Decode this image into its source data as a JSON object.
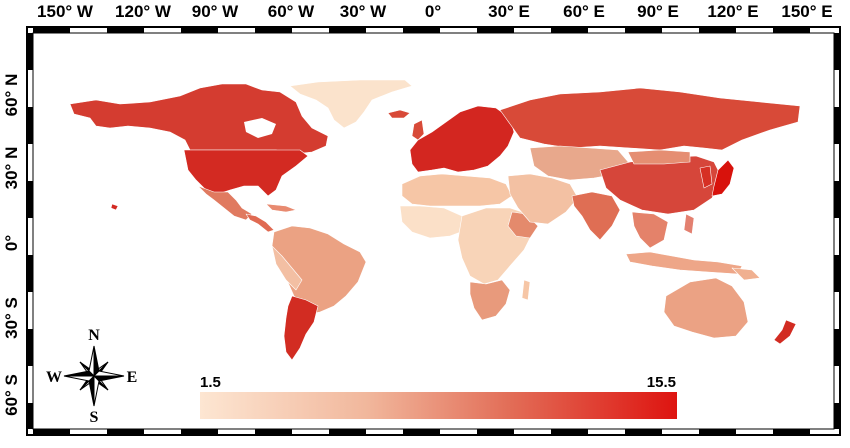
{
  "map": {
    "x_ticks": [
      "150° W",
      "120° W",
      "90° W",
      "60° W",
      "30° W",
      "0°",
      "30° E",
      "60° E",
      "90° E",
      "120° E",
      "150° E"
    ],
    "y_ticks": [
      "60° N",
      "30° N",
      "0°",
      "30° S",
      "60° S"
    ],
    "colors": {
      "low": "#fbe3cc",
      "mid_low": "#eeaa8c",
      "mid": "#e07258",
      "high": "#d84a38",
      "max": "#d8120c",
      "ocean": "#ffffff",
      "frame": "#000000"
    },
    "regions": [
      {
        "name": "north-america",
        "level": 0.75
      },
      {
        "name": "united-states",
        "level": 0.8
      },
      {
        "name": "greenland",
        "level": 0.1
      },
      {
        "name": "mexico-central-america",
        "level": 0.45
      },
      {
        "name": "south-america",
        "level": 0.35
      },
      {
        "name": "chile-argentina",
        "level": 0.85
      },
      {
        "name": "europe",
        "level": 0.85
      },
      {
        "name": "north-africa",
        "level": 0.25
      },
      {
        "name": "sub-saharan-africa",
        "level": 0.2
      },
      {
        "name": "southern-africa",
        "level": 0.4
      },
      {
        "name": "russia",
        "level": 0.7
      },
      {
        "name": "central-asia",
        "level": 0.45
      },
      {
        "name": "middle-east",
        "level": 0.35
      },
      {
        "name": "china-east-asia",
        "level": 0.72
      },
      {
        "name": "india-south-asia",
        "level": 0.65
      },
      {
        "name": "southeast-asia",
        "level": 0.5
      },
      {
        "name": "japan",
        "level": 0.95
      },
      {
        "name": "australia",
        "level": 0.45
      },
      {
        "name": "new-zealand",
        "level": 0.85
      }
    ]
  },
  "compass": {
    "north": "N",
    "south": "S",
    "east": "E",
    "west": "W"
  },
  "legend": {
    "min_label": "1.5",
    "max_label": "15.5",
    "min_value": 1.5,
    "max_value": 15.5
  }
}
